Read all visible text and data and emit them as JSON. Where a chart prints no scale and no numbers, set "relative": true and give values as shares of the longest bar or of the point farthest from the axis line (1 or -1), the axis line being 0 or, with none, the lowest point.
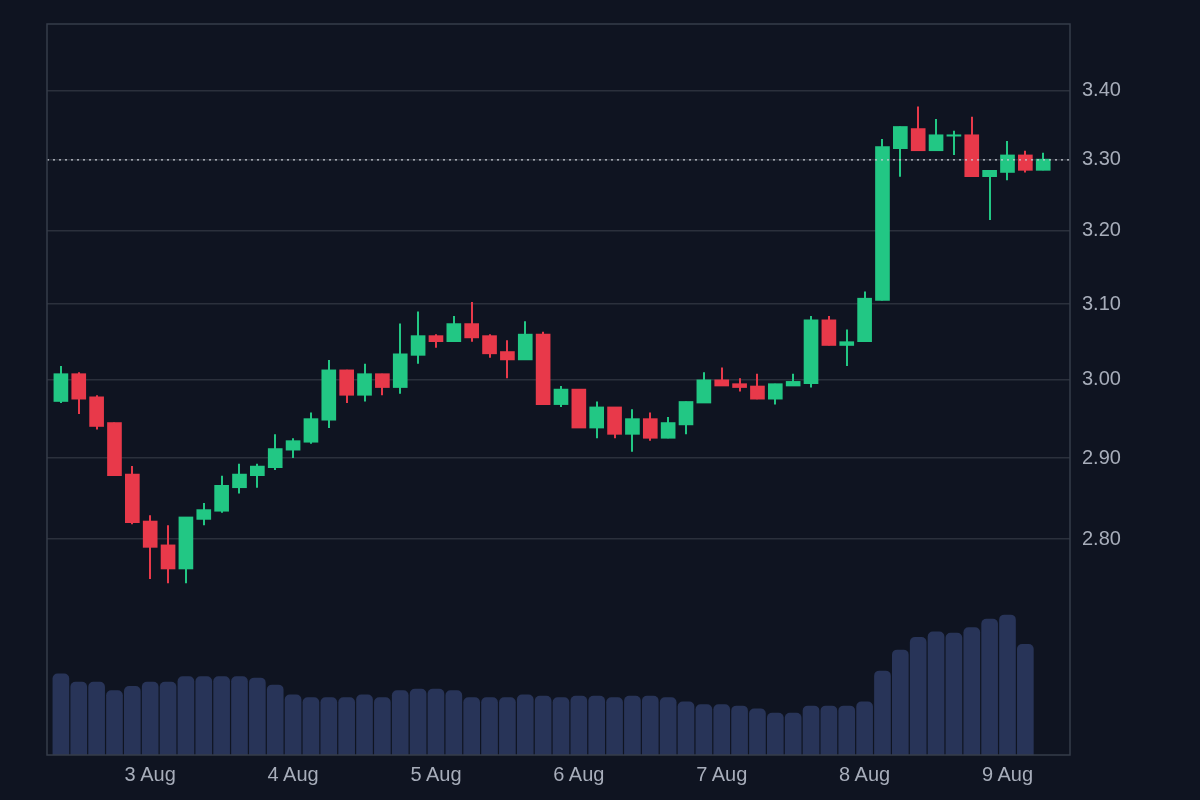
{
  "chart_data": [
    {
      "type": "candlestick",
      "x": [
        "--08-02T09:00",
        "--08-02T12:00",
        "--08-02T15:00",
        "--08-02T18:00",
        "--08-02T21:00",
        "--08-03T00:00",
        "--08-03T03:00",
        "--08-03T06:00",
        "--08-03T09:00",
        "--08-03T12:00",
        "--08-03T15:00",
        "--08-03T18:00",
        "--08-03T21:00",
        "--08-04T00:00",
        "--08-04T03:00",
        "--08-04T06:00",
        "--08-04T09:00",
        "--08-04T12:00",
        "--08-04T15:00",
        "--08-04T18:00",
        "--08-04T21:00",
        "--08-05T00:00",
        "--08-05T03:00",
        "--08-05T06:00",
        "--08-05T09:00",
        "--08-05T12:00",
        "--08-05T15:00",
        "--08-05T18:00",
        "--08-05T21:00",
        "--08-06T00:00",
        "--08-06T03:00",
        "--08-06T06:00",
        "--08-06T09:00",
        "--08-06T12:00",
        "--08-06T15:00",
        "--08-06T18:00",
        "--08-06T21:00",
        "--08-07T00:00",
        "--08-07T03:00",
        "--08-07T06:00",
        "--08-07T09:00",
        "--08-07T12:00",
        "--08-07T15:00",
        "--08-07T18:00",
        "--08-07T21:00",
        "--08-08T00:00",
        "--08-08T03:00",
        "--08-08T06:00",
        "--08-08T09:00",
        "--08-08T12:00",
        "--08-08T15:00",
        "--08-08T18:00",
        "--08-08T21:00",
        "--08-09T00:00",
        "--08-09T03:00",
        "--08-09T06:00"
      ],
      "ohlc": [
        [
          2.972,
          3.018,
          2.97,
          3.008
        ],
        [
          3.008,
          3.01,
          2.956,
          2.975
        ],
        [
          2.978,
          2.98,
          2.936,
          2.94
        ],
        [
          2.945,
          2.945,
          2.878,
          2.878
        ],
        [
          2.88,
          2.89,
          2.818,
          2.82
        ],
        [
          2.822,
          2.829,
          2.752,
          2.79
        ],
        [
          2.793,
          2.817,
          2.747,
          2.764
        ],
        [
          2.764,
          2.827,
          2.747,
          2.827
        ],
        [
          2.824,
          2.844,
          2.817,
          2.836
        ],
        [
          2.834,
          2.878,
          2.832,
          2.866
        ],
        [
          2.863,
          2.893,
          2.856,
          2.88
        ],
        [
          2.878,
          2.893,
          2.863,
          2.89
        ],
        [
          2.888,
          2.93,
          2.885,
          2.912
        ],
        [
          2.91,
          2.925,
          2.9,
          2.922
        ],
        [
          2.92,
          2.958,
          2.918,
          2.95
        ],
        [
          2.948,
          3.026,
          2.938,
          3.013
        ],
        [
          3.013,
          3.013,
          2.97,
          2.98
        ],
        [
          2.98,
          3.021,
          2.972,
          3.008
        ],
        [
          3.008,
          3.008,
          2.98,
          2.99
        ],
        [
          2.99,
          3.074,
          2.982,
          3.034
        ],
        [
          3.032,
          3.09,
          3.021,
          3.058
        ],
        [
          3.058,
          3.06,
          3.042,
          3.05
        ],
        [
          3.05,
          3.084,
          3.05,
          3.074
        ],
        [
          3.074,
          3.103,
          3.05,
          3.055
        ],
        [
          3.058,
          3.06,
          3.029,
          3.034
        ],
        [
          3.037,
          3.052,
          3.002,
          3.026
        ],
        [
          3.026,
          3.077,
          3.026,
          3.06
        ],
        [
          3.06,
          3.063,
          2.968,
          2.968
        ],
        [
          2.968,
          2.992,
          2.965,
          2.988
        ],
        [
          2.988,
          2.988,
          2.938,
          2.938
        ],
        [
          2.938,
          2.972,
          2.925,
          2.965
        ],
        [
          2.965,
          2.965,
          2.925,
          2.93
        ],
        [
          2.93,
          2.962,
          2.908,
          2.95
        ],
        [
          2.95,
          2.958,
          2.922,
          2.925
        ],
        [
          2.925,
          2.952,
          2.925,
          2.945
        ],
        [
          2.942,
          2.972,
          2.93,
          2.972
        ],
        [
          2.97,
          3.01,
          2.97,
          3.0
        ],
        [
          3.0,
          3.016,
          2.992,
          2.992
        ],
        [
          2.995,
          3.002,
          2.985,
          2.99
        ],
        [
          2.992,
          3.008,
          2.975,
          2.975
        ],
        [
          2.975,
          2.995,
          2.968,
          2.995
        ],
        [
          2.992,
          3.008,
          2.992,
          2.998
        ],
        [
          2.995,
          3.084,
          2.99,
          3.079
        ],
        [
          3.079,
          3.084,
          3.045,
          3.045
        ],
        [
          3.045,
          3.066,
          3.018,
          3.05
        ],
        [
          3.05,
          3.117,
          3.05,
          3.108
        ],
        [
          3.105,
          3.33,
          3.105,
          3.319
        ],
        [
          3.316,
          3.348,
          3.276,
          3.348
        ],
        [
          3.345,
          3.377,
          3.313,
          3.313
        ],
        [
          3.313,
          3.359,
          3.313,
          3.336
        ],
        [
          3.334,
          3.342,
          3.307,
          3.336
        ],
        [
          3.336,
          3.362,
          3.276,
          3.276
        ],
        [
          3.276,
          3.285,
          3.215,
          3.285
        ],
        [
          3.282,
          3.327,
          3.271,
          3.307
        ],
        [
          3.307,
          3.313,
          3.282,
          3.285
        ],
        [
          3.285,
          3.31,
          3.285,
          3.301
        ]
      ],
      "colors": [
        "#22c784",
        "#e8394a",
        "#e8394a",
        "#e8394a",
        "#e8394a",
        "#e8394a",
        "#e8394a",
        "#22c784",
        "#22c784",
        "#22c784",
        "#22c784",
        "#22c784",
        "#22c784",
        "#22c784",
        "#22c784",
        "#22c784",
        "#e8394a",
        "#22c784",
        "#e8394a",
        "#22c784",
        "#22c784",
        "#e8394a",
        "#22c784",
        "#e8394a",
        "#e8394a",
        "#e8394a",
        "#22c784",
        "#e8394a",
        "#22c784",
        "#e8394a",
        "#22c784",
        "#e8394a",
        "#22c784",
        "#e8394a",
        "#22c784",
        "#22c784",
        "#22c784",
        "#e8394a",
        "#e8394a",
        "#e8394a",
        "#22c784",
        "#22c784",
        "#22c784",
        "#e8394a",
        "#22c784",
        "#22c784",
        "#22c784",
        "#22c784",
        "#e8394a",
        "#22c784",
        "#22c784",
        "#e8394a",
        "#22c784",
        "#22c784",
        "#e8394a",
        "#22c784"
      ],
      "xlim": [
        "--08-02T06:40",
        "--08-09T10:30"
      ],
      "xticks": [
        {
          "value": "--08-03",
          "label": "3 Aug"
        },
        {
          "value": "--08-04",
          "label": "4 Aug"
        },
        {
          "value": "--08-05",
          "label": "5 Aug"
        },
        {
          "value": "--08-06",
          "label": "6 Aug"
        },
        {
          "value": "--08-07",
          "label": "7 Aug"
        },
        {
          "value": "--08-08",
          "label": "8 Aug"
        },
        {
          "value": "--08-09",
          "label": "9 Aug"
        }
      ],
      "ylim": [
        2.55,
        3.5
      ],
      "yticks": [
        {
          "value": 2.8,
          "label": "2.80"
        },
        {
          "value": 2.9,
          "label": "2.90"
        },
        {
          "value": 3.0,
          "label": "3.00"
        },
        {
          "value": 3.1,
          "label": "3.10"
        },
        {
          "value": 3.2,
          "label": "3.20"
        },
        {
          "value": 3.3,
          "label": "3.30"
        },
        {
          "value": 3.4,
          "label": "3.40"
        }
      ],
      "log": true,
      "grid": "y",
      "legend": false,
      "ref_lines": [
        {
          "axis": "y",
          "value": 3.3,
          "color": "#c8ccd4",
          "line_style": "dotted"
        }
      ]
    },
    {
      "type": "bar",
      "relative": true,
      "color": "#283458",
      "legend": false,
      "x": [
        "--08-02T09:00",
        "--08-02T12:00",
        "--08-02T15:00",
        "--08-02T18:00",
        "--08-02T21:00",
        "--08-03T00:00",
        "--08-03T03:00",
        "--08-03T06:00",
        "--08-03T09:00",
        "--08-03T12:00",
        "--08-03T15:00",
        "--08-03T18:00",
        "--08-03T21:00",
        "--08-04T00:00",
        "--08-04T03:00",
        "--08-04T06:00",
        "--08-04T09:00",
        "--08-04T12:00",
        "--08-04T15:00",
        "--08-04T18:00",
        "--08-04T21:00",
        "--08-05T00:00",
        "--08-05T03:00",
        "--08-05T06:00",
        "--08-05T09:00",
        "--08-05T12:00",
        "--08-05T15:00",
        "--08-05T18:00",
        "--08-05T21:00",
        "--08-06T00:00",
        "--08-06T03:00",
        "--08-06T06:00",
        "--08-06T09:00",
        "--08-06T12:00",
        "--08-06T15:00",
        "--08-06T18:00",
        "--08-06T21:00",
        "--08-07T00:00",
        "--08-07T03:00",
        "--08-07T06:00",
        "--08-07T09:00",
        "--08-07T12:00",
        "--08-07T15:00",
        "--08-07T18:00",
        "--08-07T21:00",
        "--08-08T00:00",
        "--08-08T03:00",
        "--08-08T06:00",
        "--08-08T09:00",
        "--08-08T12:00",
        "--08-08T15:00",
        "--08-08T18:00",
        "--08-08T21:00",
        "--08-09T00:00",
        "--08-09T03:00"
      ],
      "xlim": [
        "--08-02T06:40",
        "--08-09T10:30"
      ],
      "values": [
        0.58,
        0.52,
        0.52,
        0.46,
        0.49,
        0.52,
        0.52,
        0.56,
        0.56,
        0.56,
        0.56,
        0.55,
        0.5,
        0.43,
        0.41,
        0.41,
        0.41,
        0.43,
        0.41,
        0.46,
        0.47,
        0.47,
        0.46,
        0.41,
        0.41,
        0.41,
        0.43,
        0.42,
        0.41,
        0.42,
        0.42,
        0.41,
        0.42,
        0.42,
        0.41,
        0.38,
        0.36,
        0.36,
        0.35,
        0.33,
        0.3,
        0.3,
        0.35,
        0.35,
        0.35,
        0.38,
        0.6,
        0.75,
        0.84,
        0.88,
        0.87,
        0.91,
        0.97,
        1,
        0.79
      ]
    }
  ]
}
